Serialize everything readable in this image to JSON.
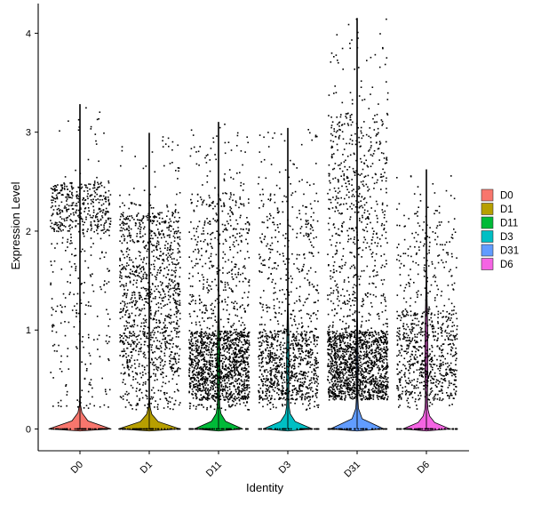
{
  "chart_data": {
    "type": "violin",
    "xlabel": "Identity",
    "ylabel": "Expression Level",
    "ylim": [
      -0.22,
      4.3
    ],
    "yticks": [
      "0",
      "1",
      "2",
      "3",
      "4"
    ],
    "categories": [
      "D0",
      "D1",
      "D11",
      "D3",
      "D31",
      "D6"
    ],
    "legend": {
      "placement": "right",
      "entries": [
        "D0",
        "D1",
        "D11",
        "D3",
        "D31",
        "D6"
      ]
    },
    "grid": false,
    "series": [
      {
        "name": "D0",
        "color": "#F8766D",
        "max": 3.28,
        "zero_fraction": 0.97,
        "typical_range": [
          0.2,
          2.6
        ],
        "dense_band": [
          2.0,
          2.5
        ],
        "points_shown": 600
      },
      {
        "name": "D1",
        "color": "#B79F00",
        "max": 2.99,
        "zero_fraction": 0.95,
        "typical_range": [
          0.2,
          2.3
        ],
        "dense_band": [
          0.5,
          2.2
        ],
        "points_shown": 1200
      },
      {
        "name": "D11",
        "color": "#00BA38",
        "max": 3.1,
        "zero_fraction": 0.62,
        "typical_range": [
          0.2,
          2.4
        ],
        "dense_band": [
          0.3,
          1.0
        ],
        "points_shown": 1700
      },
      {
        "name": "D3",
        "color": "#00BFC4",
        "max": 3.04,
        "zero_fraction": 0.64,
        "typical_range": [
          0.2,
          2.4
        ],
        "dense_band": [
          0.3,
          1.0
        ],
        "points_shown": 1100
      },
      {
        "name": "D31",
        "color": "#619CFF",
        "max": 4.15,
        "zero_fraction": 0.74,
        "typical_range": [
          0.3,
          3.2
        ],
        "dense_band": [
          0.3,
          1.0
        ],
        "points_shown": 2000
      },
      {
        "name": "D6",
        "color": "#F564E3",
        "max": 2.62,
        "zero_fraction": 0.58,
        "typical_range": [
          0.2,
          2.2
        ],
        "dense_band": [
          0.3,
          1.2
        ],
        "points_shown": 850
      }
    ]
  }
}
